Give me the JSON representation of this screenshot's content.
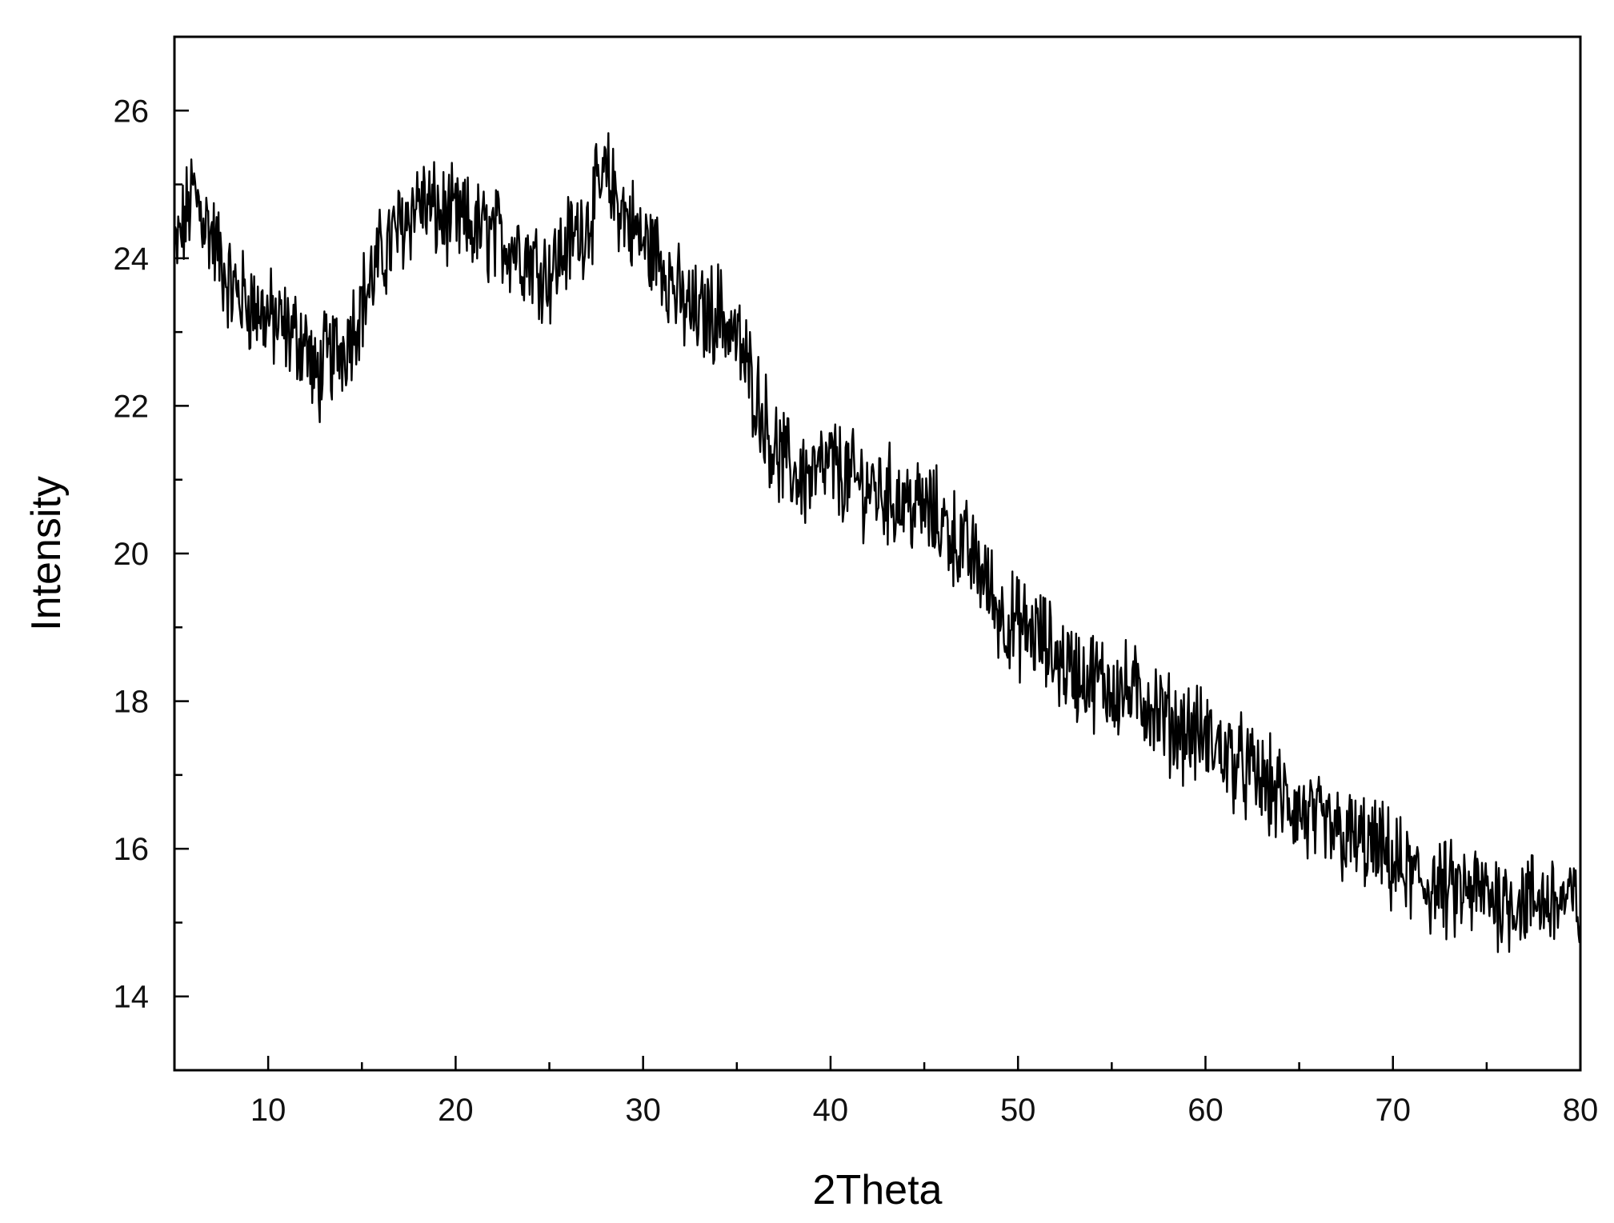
{
  "chart_data": {
    "type": "line",
    "title": "",
    "xlabel": "2Theta",
    "ylabel": "Intensity",
    "xlim": [
      5,
      80
    ],
    "ylim": [
      13,
      27
    ],
    "x_major_ticks": [
      10,
      20,
      30,
      40,
      50,
      60,
      70,
      80
    ],
    "x_minor_ticks": [
      15,
      25,
      35,
      45,
      55,
      65,
      75
    ],
    "y_major_ticks": [
      14,
      16,
      18,
      20,
      22,
      24,
      26
    ],
    "y_minor_ticks": [
      15,
      17,
      19,
      21,
      23,
      25
    ],
    "x_tick_labels": [
      "10",
      "20",
      "30",
      "40",
      "50",
      "60",
      "70",
      "80"
    ],
    "y_tick_labels": [
      "14",
      "16",
      "18",
      "20",
      "22",
      "24",
      "26"
    ],
    "grid": false,
    "legend": "none",
    "line_color": "#000000",
    "series": [
      {
        "x": [
          5,
          6,
          7,
          8,
          9,
          10,
          11,
          12,
          12.5,
          13,
          14,
          15,
          16,
          17,
          18,
          19,
          20,
          21,
          22,
          23,
          24,
          25,
          26,
          27,
          28,
          29,
          30,
          31,
          32,
          33,
          34,
          35,
          36,
          37,
          38,
          39,
          40,
          41,
          42,
          43,
          44,
          45,
          46,
          47,
          48,
          49,
          50,
          51,
          52,
          53,
          54,
          55,
          56,
          57,
          58,
          59,
          60,
          61,
          62,
          63,
          64,
          65,
          66,
          67,
          68,
          69,
          70,
          71,
          72,
          73,
          74,
          75,
          76,
          77,
          78,
          79,
          80
        ],
        "y": [
          24.0,
          24.9,
          24.3,
          23.6,
          23.4,
          23.2,
          23.0,
          22.9,
          22.3,
          22.6,
          22.8,
          23.4,
          24.0,
          24.4,
          24.8,
          24.6,
          24.5,
          24.4,
          24.3,
          24.2,
          24.0,
          23.8,
          24.2,
          24.5,
          25.1,
          24.6,
          24.2,
          24.0,
          23.4,
          23.2,
          23.3,
          22.9,
          22.2,
          21.4,
          21.1,
          21.0,
          21.2,
          21.0,
          20.9,
          20.8,
          20.7,
          20.6,
          20.4,
          20.1,
          19.8,
          19.2,
          19.0,
          18.9,
          18.6,
          18.4,
          18.3,
          18.2,
          18.1,
          18.0,
          17.7,
          17.6,
          17.5,
          17.3,
          17.1,
          16.9,
          16.7,
          16.5,
          16.3,
          16.2,
          16.1,
          16.0,
          15.8,
          15.6,
          15.5,
          15.4,
          15.4,
          15.4,
          15.3,
          15.3,
          15.3,
          15.3,
          15.2
        ]
      }
    ]
  }
}
